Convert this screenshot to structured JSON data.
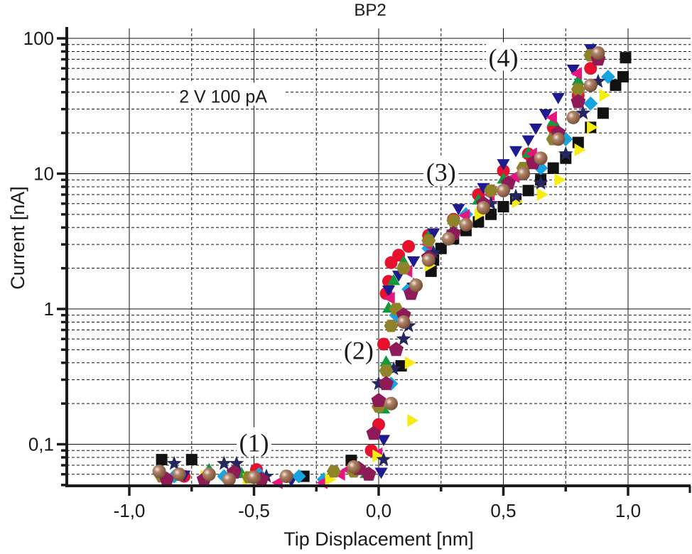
{
  "chart_data": {
    "type": "scatter",
    "title": "BP2",
    "xlabel": "Tip Displacement [nm]",
    "ylabel": "Current [nA]",
    "xlim": [
      -1.25,
      1.25
    ],
    "ylim": [
      0.05,
      100
    ],
    "yscale": "log",
    "grid": true,
    "x_ticks": [
      {
        "value": -1.0,
        "label": "-1,0"
      },
      {
        "value": -0.5,
        "label": "-0,5"
      },
      {
        "value": 0.0,
        "label": "0,0"
      },
      {
        "value": 0.5,
        "label": "0,5"
      },
      {
        "value": 1.0,
        "label": "1,0"
      }
    ],
    "x_minor_ticks": [
      -0.75,
      -0.25,
      0.25,
      0.75
    ],
    "y_ticks": [
      {
        "value": 0.1,
        "label": "0,1"
      },
      {
        "value": 1,
        "label": "1"
      },
      {
        "value": 10,
        "label": "10"
      },
      {
        "value": 100,
        "label": "100"
      }
    ],
    "annotations": [
      {
        "text": "2 V 100 pA",
        "x": -0.8,
        "y": 36,
        "kind": "note"
      },
      {
        "text": "(1)",
        "x": -0.5,
        "y": 0.1,
        "kind": "region"
      },
      {
        "text": "(2)",
        "x": -0.08,
        "y": 0.48,
        "kind": "region"
      },
      {
        "text": "(3)",
        "x": 0.25,
        "y": 10,
        "kind": "region"
      },
      {
        "text": "(4)",
        "x": 0.5,
        "y": 70,
        "kind": "region"
      }
    ],
    "series": [
      {
        "name": "black squares",
        "marker": "square",
        "color": "#111111",
        "points": [
          [
            -0.87,
            0.077
          ],
          [
            -0.75,
            0.077
          ],
          [
            -0.3,
            0.058
          ],
          [
            -0.11,
            0.076
          ],
          [
            0.09,
            0.38
          ],
          [
            0.21,
            1.9
          ],
          [
            0.22,
            2.3
          ],
          [
            0.25,
            2.8
          ],
          [
            0.3,
            3.3
          ],
          [
            0.35,
            3.8
          ],
          [
            0.4,
            4.4
          ],
          [
            0.45,
            5.0
          ],
          [
            0.5,
            5.7
          ],
          [
            0.55,
            6.5
          ],
          [
            0.6,
            7.5
          ],
          [
            0.65,
            9
          ],
          [
            0.7,
            11
          ],
          [
            0.75,
            13
          ],
          [
            0.8,
            17
          ],
          [
            0.85,
            22
          ],
          [
            0.9,
            28
          ],
          [
            0.95,
            45
          ],
          [
            0.98,
            52
          ],
          [
            0.99,
            72
          ]
        ]
      },
      {
        "name": "red circles",
        "marker": "circle",
        "color": "#e8112d",
        "points": [
          [
            -0.78,
            0.058
          ],
          [
            -0.49,
            0.065
          ],
          [
            -0.03,
            0.09
          ],
          [
            0.0,
            0.14
          ],
          [
            0.02,
            0.55
          ],
          [
            0.03,
            1.3
          ],
          [
            0.04,
            1.6
          ],
          [
            0.05,
            2.2
          ],
          [
            0.08,
            2.5
          ],
          [
            0.12,
            2.9
          ],
          [
            0.2,
            3.5
          ],
          [
            0.3,
            4.6
          ],
          [
            0.4,
            7.0
          ],
          [
            0.5,
            10.5
          ],
          [
            0.6,
            14
          ],
          [
            0.7,
            22
          ],
          [
            0.8,
            38
          ],
          [
            0.85,
            60
          ]
        ]
      },
      {
        "name": "green triangles",
        "marker": "triangle-up",
        "color": "#0f9b3d",
        "points": [
          [
            -0.68,
            0.064
          ],
          [
            -0.55,
            0.06
          ],
          [
            -0.05,
            0.06
          ],
          [
            0.02,
            0.18
          ],
          [
            0.03,
            0.4
          ],
          [
            0.04,
            1.0
          ],
          [
            0.06,
            1.6
          ],
          [
            0.1,
            2.2
          ],
          [
            0.2,
            3.4
          ],
          [
            0.3,
            4.5
          ],
          [
            0.4,
            6.3
          ],
          [
            0.5,
            9
          ],
          [
            0.6,
            14
          ],
          [
            0.7,
            24
          ],
          [
            0.8,
            48
          ],
          [
            0.86,
            82
          ]
        ]
      },
      {
        "name": "navy down-triangles",
        "marker": "triangle-down",
        "color": "#1e1a8f",
        "points": [
          [
            -0.78,
            0.06
          ],
          [
            -0.35,
            0.055
          ],
          [
            0.01,
            0.063
          ],
          [
            0.02,
            0.11
          ],
          [
            0.04,
            1.4
          ],
          [
            0.08,
            1.8
          ],
          [
            0.14,
            2.3
          ],
          [
            0.22,
            3.7
          ],
          [
            0.32,
            5.6
          ],
          [
            0.42,
            8.0
          ],
          [
            0.5,
            12
          ],
          [
            0.55,
            15
          ],
          [
            0.6,
            18
          ],
          [
            0.63,
            22
          ],
          [
            0.67,
            28
          ],
          [
            0.72,
            37
          ],
          [
            0.78,
            60
          ],
          [
            0.85,
            85
          ]
        ]
      },
      {
        "name": "cyan diamonds",
        "marker": "diamond",
        "color": "#17a3e0",
        "points": [
          [
            -0.82,
            0.058
          ],
          [
            -0.62,
            0.058
          ],
          [
            -0.48,
            0.06
          ],
          [
            -0.32,
            0.058
          ],
          [
            -0.22,
            0.055
          ],
          [
            0.05,
            0.28
          ],
          [
            0.07,
            0.9
          ],
          [
            0.12,
            1.4
          ],
          [
            0.2,
            2.8
          ],
          [
            0.35,
            5.0
          ],
          [
            0.5,
            7.5
          ],
          [
            0.65,
            11
          ],
          [
            0.75,
            18
          ],
          [
            0.85,
            33
          ],
          [
            0.92,
            52
          ]
        ]
      },
      {
        "name": "magenta left-triangles",
        "marker": "triangle-left",
        "color": "#e6167f",
        "points": [
          [
            -0.4,
            0.052
          ],
          [
            -0.22,
            0.052
          ],
          [
            -0.15,
            0.06
          ],
          [
            -0.12,
            0.065
          ],
          [
            0.0,
            0.085
          ],
          [
            0.05,
            1.2
          ],
          [
            0.12,
            1.9
          ],
          [
            0.2,
            3.0
          ],
          [
            0.35,
            4.9
          ],
          [
            0.45,
            7.0
          ],
          [
            0.55,
            9.5
          ],
          [
            0.62,
            14
          ],
          [
            0.7,
            26
          ],
          [
            0.8,
            55
          ]
        ]
      },
      {
        "name": "yellow right-triangles",
        "marker": "triangle-right",
        "color": "#f5ec10",
        "points": [
          [
            -0.7,
            0.058
          ],
          [
            -0.53,
            0.055
          ],
          [
            -0.2,
            0.055
          ],
          [
            -0.01,
            0.082
          ],
          [
            0.05,
            0.2
          ],
          [
            0.13,
            0.15
          ],
          [
            0.12,
            0.4
          ],
          [
            0.2,
            2.1
          ],
          [
            0.4,
            5.0
          ],
          [
            0.55,
            6.2
          ],
          [
            0.65,
            7.0
          ],
          [
            0.72,
            9.0
          ],
          [
            0.8,
            15
          ],
          [
            0.85,
            22
          ],
          [
            0.9,
            38
          ]
        ]
      },
      {
        "name": "dark navy stars",
        "marker": "star",
        "color": "#242660",
        "points": [
          [
            -0.82,
            0.072
          ],
          [
            -0.62,
            0.072
          ],
          [
            -0.57,
            0.072
          ],
          [
            -0.45,
            0.058
          ],
          [
            0.02,
            0.077
          ],
          [
            0.0,
            0.28
          ],
          [
            0.06,
            0.36
          ],
          [
            0.1,
            0.6
          ],
          [
            0.12,
            0.75
          ],
          [
            0.14,
            1.5
          ],
          [
            0.22,
            2.6
          ],
          [
            0.3,
            3.7
          ],
          [
            0.45,
            6.0
          ],
          [
            0.55,
            6.8
          ],
          [
            0.65,
            8.5
          ],
          [
            0.75,
            14
          ],
          [
            0.82,
            28
          ],
          [
            0.88,
            48
          ]
        ]
      },
      {
        "name": "olive hexagons",
        "marker": "hexagon",
        "color": "#8f8329",
        "points": [
          [
            -0.87,
            0.058
          ],
          [
            -0.8,
            0.06
          ],
          [
            -0.52,
            0.057
          ],
          [
            -0.37,
            0.058
          ],
          [
            -0.18,
            0.063
          ],
          [
            -0.1,
            0.063
          ],
          [
            0.0,
            0.19
          ],
          [
            0.03,
            0.35
          ],
          [
            0.05,
            0.75
          ],
          [
            0.07,
            1.0
          ],
          [
            0.1,
            2.0
          ],
          [
            0.2,
            3.2
          ],
          [
            0.3,
            4.5
          ],
          [
            0.45,
            7.5
          ],
          [
            0.58,
            11
          ],
          [
            0.7,
            18
          ],
          [
            0.8,
            42
          ],
          [
            0.85,
            75
          ]
        ]
      },
      {
        "name": "purple pentagons",
        "marker": "pentagon",
        "color": "#8e1a57",
        "points": [
          [
            -0.85,
            0.055
          ],
          [
            -0.7,
            0.055
          ],
          [
            -0.58,
            0.062
          ],
          [
            -0.47,
            0.055
          ],
          [
            -0.08,
            0.066
          ],
          [
            -0.04,
            0.06
          ],
          [
            -0.02,
            0.12
          ],
          [
            0.0,
            0.21
          ],
          [
            0.03,
            0.28
          ],
          [
            0.07,
            0.5
          ],
          [
            0.1,
            0.9
          ],
          [
            0.13,
            1.3
          ],
          [
            0.2,
            2.4
          ],
          [
            0.3,
            3.6
          ],
          [
            0.42,
            6.0
          ],
          [
            0.52,
            8.5
          ],
          [
            0.62,
            12
          ],
          [
            0.72,
            20
          ],
          [
            0.8,
            34
          ],
          [
            0.88,
            70
          ]
        ]
      },
      {
        "name": "brown spheres",
        "marker": "sphere",
        "color": "#9a6b52",
        "points": [
          [
            -0.88,
            0.063
          ],
          [
            -0.8,
            0.06
          ],
          [
            -0.68,
            0.06
          ],
          [
            -0.6,
            0.055
          ],
          [
            -0.5,
            0.057
          ],
          [
            -0.37,
            0.058
          ],
          [
            -0.1,
            0.068
          ],
          [
            0.05,
            0.2
          ],
          [
            0.1,
            0.8
          ],
          [
            0.15,
            1.5
          ],
          [
            0.2,
            2.3
          ],
          [
            0.28,
            3.3
          ],
          [
            0.35,
            4.2
          ],
          [
            0.42,
            5.6
          ],
          [
            0.5,
            7.5
          ],
          [
            0.58,
            10
          ],
          [
            0.65,
            13
          ],
          [
            0.72,
            18
          ],
          [
            0.78,
            26
          ],
          [
            0.85,
            45
          ],
          [
            0.88,
            78
          ]
        ]
      }
    ]
  }
}
